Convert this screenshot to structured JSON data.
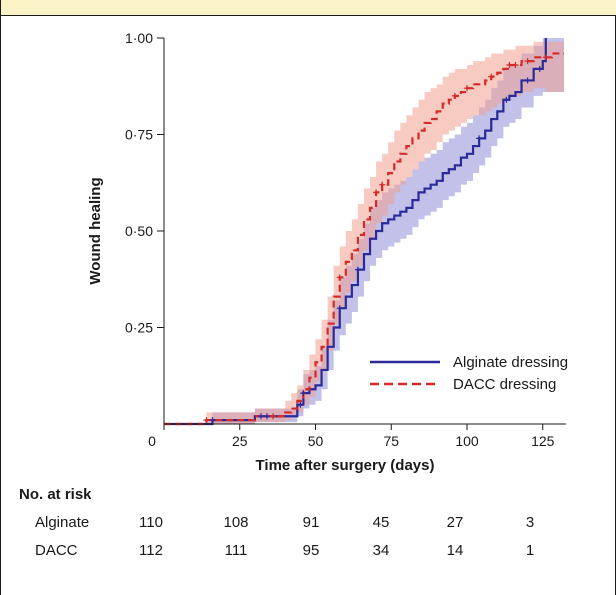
{
  "chart_data": {
    "type": "line",
    "xlabel": "Time after surgery (days)",
    "ylabel": "Wound healing",
    "xlim": [
      0,
      132
    ],
    "ylim": [
      0,
      1.0
    ],
    "x_ticks": [
      0,
      25,
      50,
      75,
      100,
      125
    ],
    "y_ticks": [
      0.25,
      0.5,
      0.75,
      1.0
    ],
    "y_tick_labels": [
      "0·25",
      "0·50",
      "0·75",
      "1·00"
    ],
    "legend_position": "lower-right",
    "series": [
      {
        "name": "Alginate dressing",
        "color": "#2a2a9a",
        "band_color": "#8e8ed8",
        "style": "solid",
        "x": [
          0,
          16,
          30,
          44,
          46,
          48,
          50,
          52,
          54,
          56,
          58,
          60,
          62,
          64,
          66,
          68,
          70,
          72,
          74,
          76,
          78,
          80,
          82,
          84,
          86,
          88,
          90,
          92,
          94,
          96,
          98,
          100,
          102,
          104,
          106,
          108,
          110,
          112,
          114,
          116,
          118,
          122,
          125,
          126
        ],
        "y": [
          0,
          0.01,
          0.02,
          0.05,
          0.08,
          0.09,
          0.1,
          0.14,
          0.2,
          0.25,
          0.3,
          0.33,
          0.36,
          0.4,
          0.44,
          0.48,
          0.5,
          0.52,
          0.53,
          0.54,
          0.55,
          0.56,
          0.58,
          0.6,
          0.61,
          0.62,
          0.63,
          0.65,
          0.66,
          0.67,
          0.69,
          0.7,
          0.72,
          0.74,
          0.76,
          0.79,
          0.81,
          0.84,
          0.85,
          0.86,
          0.89,
          0.92,
          0.94,
          1.0
        ],
        "lower": [
          0,
          0.0,
          0.005,
          0.02,
          0.04,
          0.05,
          0.06,
          0.09,
          0.14,
          0.19,
          0.23,
          0.26,
          0.29,
          0.33,
          0.37,
          0.41,
          0.43,
          0.45,
          0.46,
          0.47,
          0.48,
          0.49,
          0.51,
          0.53,
          0.54,
          0.55,
          0.56,
          0.58,
          0.59,
          0.6,
          0.62,
          0.63,
          0.65,
          0.67,
          0.69,
          0.72,
          0.74,
          0.77,
          0.78,
          0.79,
          0.82,
          0.85,
          0.86,
          0.86
        ],
        "upper": [
          0,
          0.03,
          0.04,
          0.09,
          0.13,
          0.14,
          0.15,
          0.2,
          0.27,
          0.32,
          0.38,
          0.41,
          0.44,
          0.48,
          0.52,
          0.56,
          0.58,
          0.6,
          0.61,
          0.62,
          0.63,
          0.64,
          0.66,
          0.68,
          0.69,
          0.7,
          0.71,
          0.73,
          0.74,
          0.75,
          0.77,
          0.78,
          0.8,
          0.82,
          0.84,
          0.87,
          0.89,
          0.92,
          0.93,
          0.93,
          0.96,
          0.98,
          1.0,
          1.0
        ],
        "censored_x": [
          16,
          32,
          34,
          45,
          46,
          58,
          64,
          104,
          113,
          120,
          124
        ],
        "risk": [
          110,
          108,
          91,
          45,
          27,
          3
        ]
      },
      {
        "name": "DACC dressing",
        "color": "#d42a2a",
        "band_color": "#f0a090",
        "style": "dashed",
        "x": [
          0,
          14,
          30,
          40,
          42,
          44,
          46,
          48,
          50,
          52,
          54,
          56,
          58,
          60,
          62,
          64,
          66,
          68,
          70,
          72,
          74,
          76,
          78,
          80,
          82,
          84,
          86,
          88,
          90,
          92,
          94,
          96,
          98,
          100,
          102,
          104,
          106,
          108,
          110,
          112,
          114,
          116,
          118,
          120,
          122,
          124,
          126,
          128,
          130
        ],
        "y": [
          0,
          0.01,
          0.02,
          0.03,
          0.04,
          0.06,
          0.09,
          0.12,
          0.16,
          0.2,
          0.26,
          0.33,
          0.38,
          0.42,
          0.45,
          0.49,
          0.53,
          0.56,
          0.6,
          0.62,
          0.65,
          0.68,
          0.7,
          0.72,
          0.74,
          0.76,
          0.78,
          0.79,
          0.81,
          0.83,
          0.84,
          0.85,
          0.86,
          0.87,
          0.88,
          0.88,
          0.89,
          0.9,
          0.91,
          0.92,
          0.93,
          0.93,
          0.94,
          0.94,
          0.95,
          0.95,
          0.95,
          0.96,
          0.96
        ],
        "lower": [
          0,
          0.0,
          0.005,
          0.01,
          0.02,
          0.03,
          0.05,
          0.07,
          0.11,
          0.14,
          0.19,
          0.26,
          0.3,
          0.34,
          0.37,
          0.41,
          0.45,
          0.48,
          0.52,
          0.54,
          0.57,
          0.6,
          0.62,
          0.64,
          0.66,
          0.68,
          0.7,
          0.71,
          0.73,
          0.75,
          0.76,
          0.77,
          0.78,
          0.79,
          0.8,
          0.8,
          0.81,
          0.82,
          0.83,
          0.84,
          0.85,
          0.85,
          0.86,
          0.86,
          0.87,
          0.87,
          0.86,
          0.86,
          0.86
        ],
        "upper": [
          0,
          0.03,
          0.04,
          0.06,
          0.08,
          0.1,
          0.14,
          0.18,
          0.22,
          0.27,
          0.33,
          0.41,
          0.46,
          0.5,
          0.53,
          0.57,
          0.61,
          0.64,
          0.68,
          0.7,
          0.73,
          0.76,
          0.78,
          0.8,
          0.82,
          0.84,
          0.86,
          0.87,
          0.88,
          0.9,
          0.91,
          0.92,
          0.92,
          0.93,
          0.94,
          0.94,
          0.95,
          0.96,
          0.96,
          0.97,
          0.97,
          0.98,
          0.98,
          0.98,
          0.99,
          0.99,
          0.99,
          0.99,
          0.99
        ],
        "censored_x": [
          14,
          36,
          58,
          70,
          72,
          96,
          100,
          108,
          114,
          116,
          120,
          126
        ],
        "risk": [
          112,
          111,
          95,
          34,
          14,
          1
        ]
      }
    ]
  },
  "risk_table": {
    "title": "No. at risk",
    "rows": [
      {
        "label": "Alginate",
        "values": [
          "110",
          "108",
          "91",
          "45",
          "27",
          "3"
        ]
      },
      {
        "label": "DACC",
        "values": [
          "112",
          "111",
          "95",
          "34",
          "14",
          "1"
        ]
      }
    ]
  }
}
